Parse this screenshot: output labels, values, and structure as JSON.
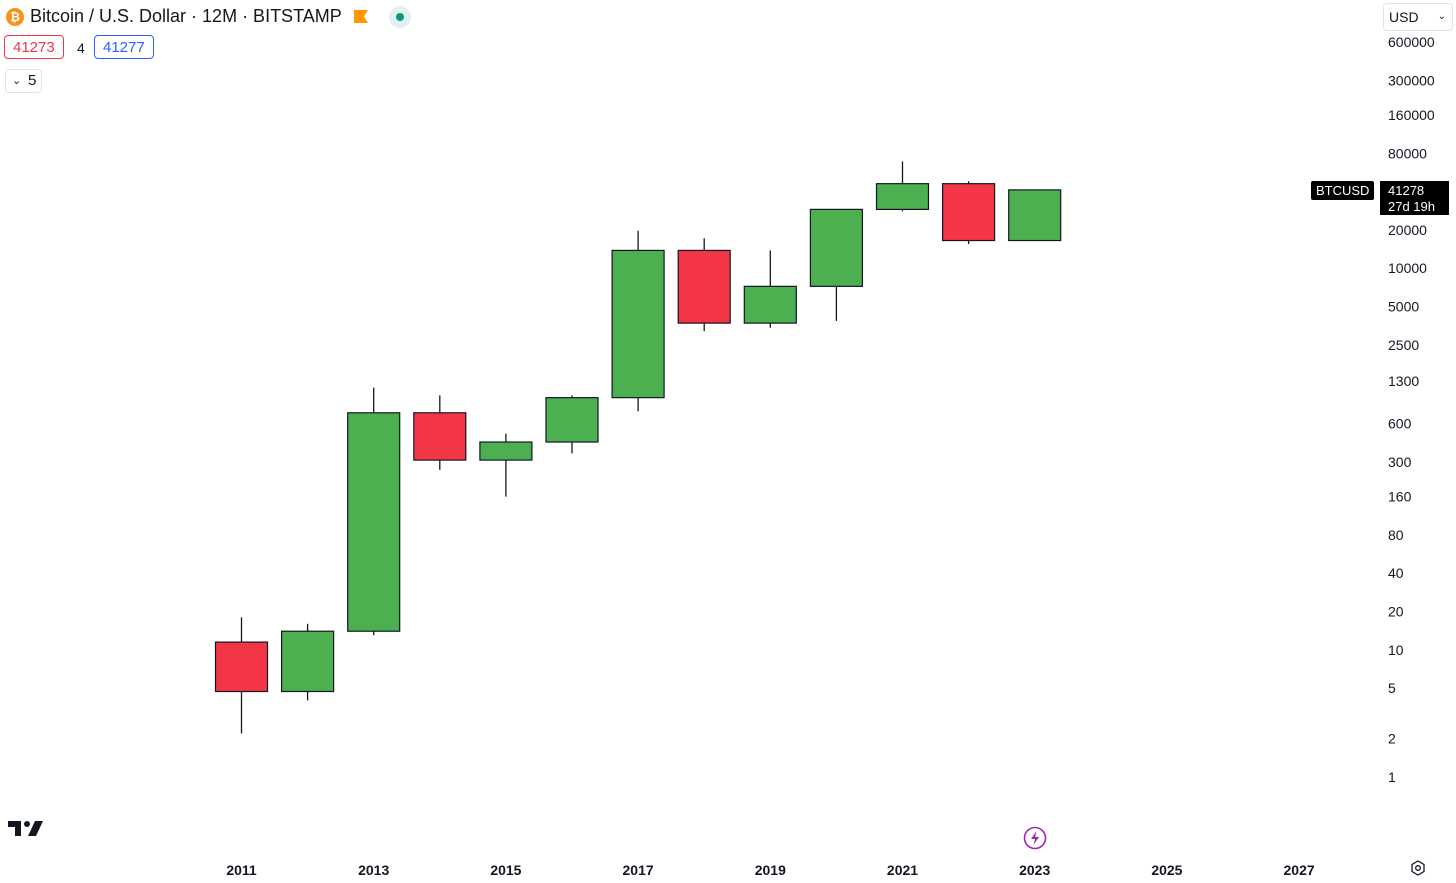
{
  "header": {
    "coin_glyph": "₿",
    "title": "Bitcoin / U.S. Dollar · 12M · BITSTAMP",
    "bid": "41273",
    "spread": "4",
    "ask": "41277",
    "toggle_label": "5",
    "currency": "USD"
  },
  "price_badge": {
    "symbol": "BTCUSD",
    "price": "41278",
    "countdown": "27d 19h"
  },
  "colors": {
    "up": "#4caf50",
    "down": "#f23645",
    "wick": "#131722"
  },
  "icons": [
    "bitcoin-icon",
    "flag-icon",
    "live-dot-icon",
    "chevron-down-icon",
    "tradingview-logo-icon",
    "lightning-icon",
    "gear-icon"
  ],
  "chart_data": {
    "type": "candlestick",
    "y_scale": "log",
    "y_ticks": [
      1,
      2,
      5,
      10,
      20,
      40,
      80,
      160,
      300,
      600,
      1300,
      2500,
      5000,
      10000,
      20000,
      80000,
      160000,
      300000,
      600000
    ],
    "x_ticks": [
      "2011",
      "2013",
      "2015",
      "2017",
      "2019",
      "2021",
      "2023",
      "2025",
      "2027"
    ],
    "candles": [
      {
        "year": 2011,
        "open": 11.5,
        "high": 18,
        "low": 2.2,
        "close": 4.7
      },
      {
        "year": 2012,
        "open": 4.7,
        "high": 16,
        "low": 4,
        "close": 14
      },
      {
        "year": 2013,
        "open": 14,
        "high": 1150,
        "low": 13,
        "close": 730
      },
      {
        "year": 2014,
        "open": 730,
        "high": 1000,
        "low": 260,
        "close": 310
      },
      {
        "year": 2015,
        "open": 310,
        "high": 500,
        "low": 160,
        "close": 430
      },
      {
        "year": 2016,
        "open": 430,
        "high": 1000,
        "low": 350,
        "close": 960
      },
      {
        "year": 2017,
        "open": 960,
        "high": 19700,
        "low": 750,
        "close": 13800
      },
      {
        "year": 2018,
        "open": 13800,
        "high": 17200,
        "low": 3200,
        "close": 3700
      },
      {
        "year": 2019,
        "open": 3700,
        "high": 13800,
        "low": 3400,
        "close": 7200
      },
      {
        "year": 2020,
        "open": 7200,
        "high": 29000,
        "low": 3850,
        "close": 29000
      },
      {
        "year": 2021,
        "open": 29000,
        "high": 69000,
        "low": 28000,
        "close": 46200
      },
      {
        "year": 2022,
        "open": 46200,
        "high": 48200,
        "low": 15500,
        "close": 16500
      },
      {
        "year": 2023,
        "open": 16500,
        "high": 41500,
        "low": 16500,
        "close": 41278
      }
    ]
  }
}
